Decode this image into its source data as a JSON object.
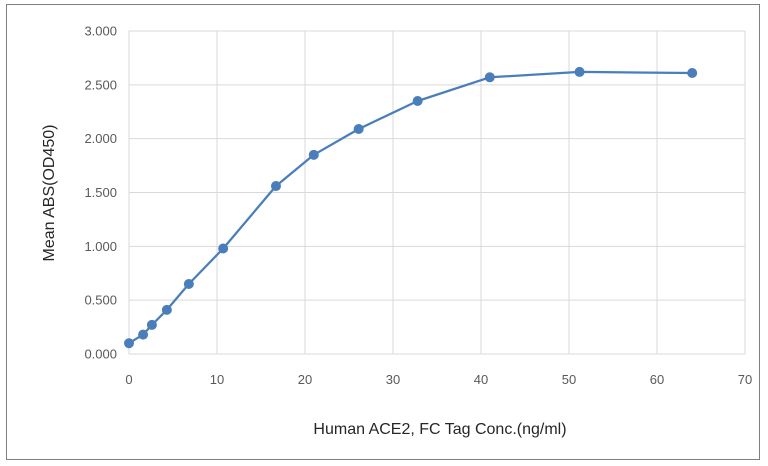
{
  "chart_data": {
    "type": "line",
    "title": "",
    "xlabel": "Human ACE2, FC Tag Conc.(ng/ml)",
    "ylabel": "Mean ABS(OD450)",
    "xlim": [
      0,
      70
    ],
    "ylim": [
      0,
      3
    ],
    "x_ticks": [
      "0",
      "10",
      "20",
      "30",
      "40",
      "50",
      "60",
      "70"
    ],
    "y_ticks": [
      "0.000",
      "0.500",
      "1.000",
      "1.500",
      "2.000",
      "2.500",
      "3.000"
    ],
    "grid": true,
    "legend": "none",
    "series": [
      {
        "color": "#4a7ebb",
        "x": [
          0,
          1.6,
          2.6,
          4.3,
          6.8,
          10.7,
          16.7,
          21,
          26.1,
          32.8,
          41,
          51.2,
          64
        ],
        "y": [
          0.1,
          0.18,
          0.27,
          0.41,
          0.65,
          0.98,
          1.56,
          1.85,
          2.09,
          2.35,
          2.57,
          2.62,
          2.61
        ]
      }
    ]
  }
}
